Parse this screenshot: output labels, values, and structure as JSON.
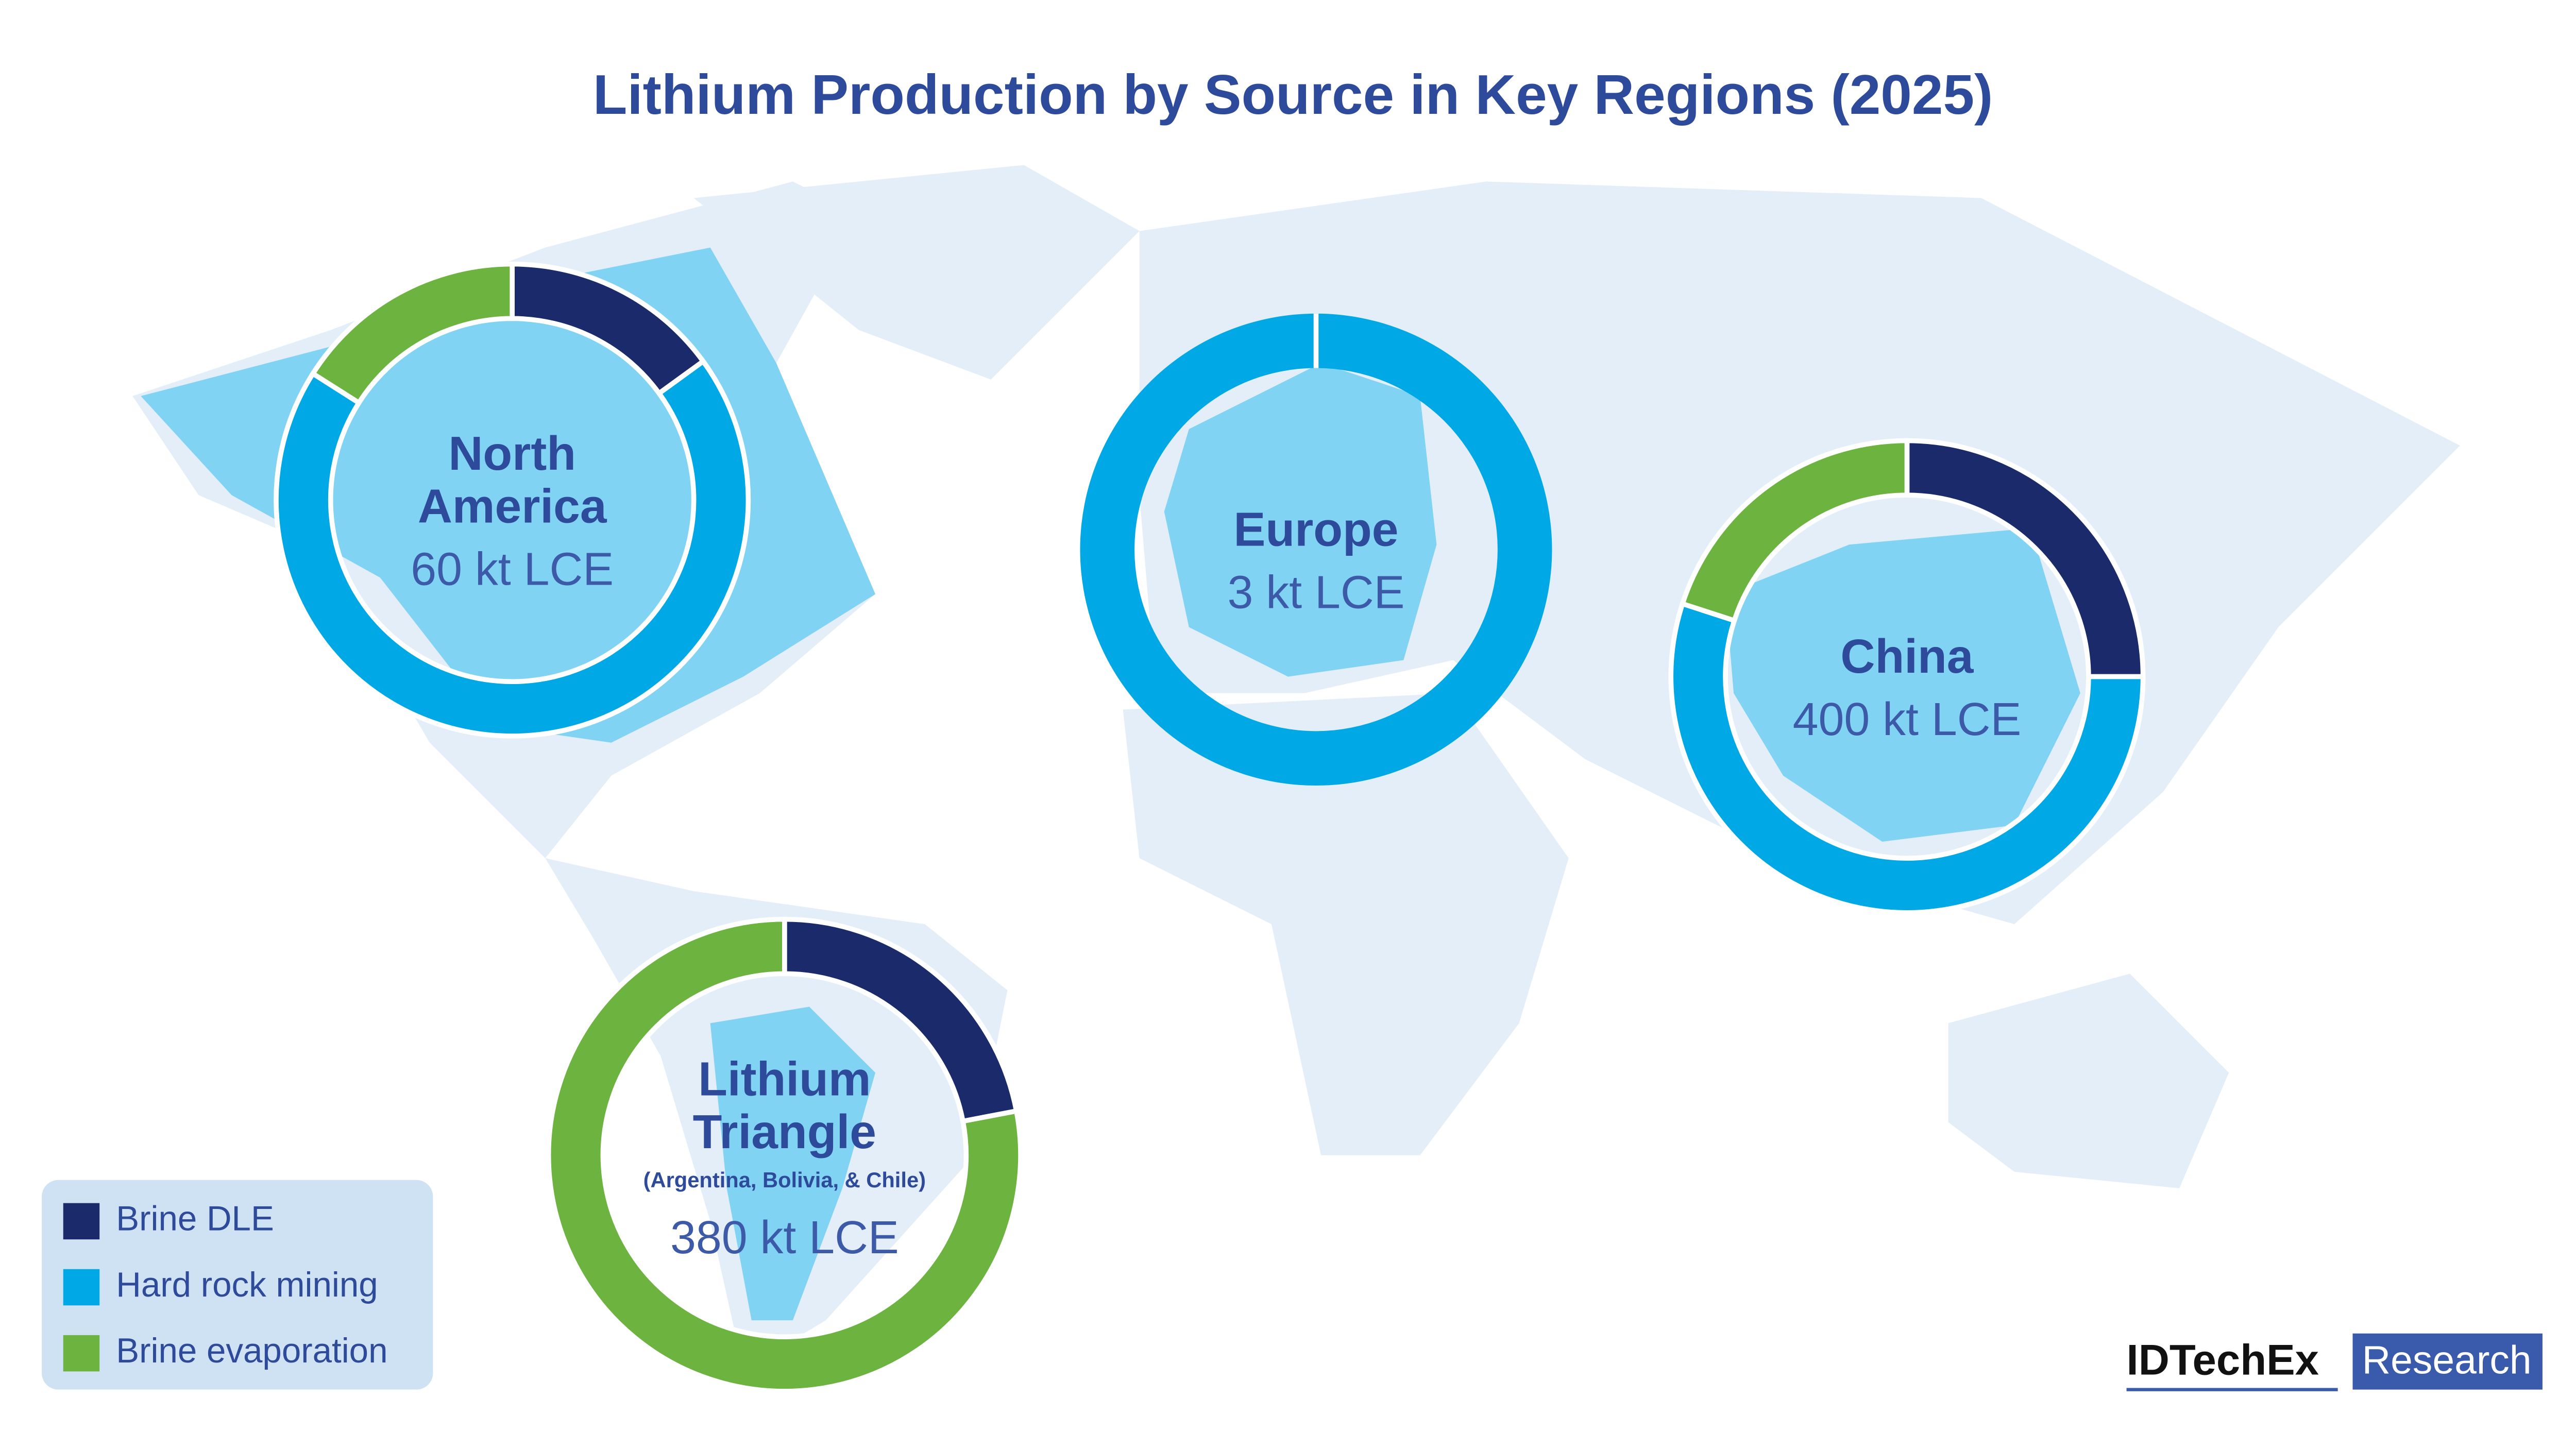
{
  "title": "Lithium Production by Source in Key Regions (2025)",
  "chart_data": [
    {
      "type": "pie",
      "title": [
        "North",
        "America"
      ],
      "subtitle": "60 kt LCE",
      "categories": [
        "Brine DLE",
        "Hard rock mining",
        "Brine evaporation"
      ],
      "colors": [
        "#1b2a6b",
        "#00a9e6",
        "#6cb33f"
      ],
      "values": [
        15,
        69,
        16
      ]
    },
    {
      "type": "pie",
      "title": [
        "Europe"
      ],
      "subtitle": "3 kt LCE",
      "categories": [
        "Brine DLE",
        "Hard rock mining",
        "Brine evaporation"
      ],
      "colors": [
        "#1b2a6b",
        "#00a9e6",
        "#6cb33f"
      ],
      "values": [
        0,
        100,
        0
      ]
    },
    {
      "type": "pie",
      "title": [
        "China"
      ],
      "subtitle": "400 kt LCE",
      "categories": [
        "Brine DLE",
        "Hard rock mining",
        "Brine evaporation"
      ],
      "colors": [
        "#1b2a6b",
        "#00a9e6",
        "#6cb33f"
      ],
      "values": [
        25,
        55,
        20
      ]
    },
    {
      "type": "pie",
      "title": [
        "Lithium",
        "Triangle"
      ],
      "note": "(Argentina, Bolivia, & Chile)",
      "subtitle": "380 kt LCE",
      "categories": [
        "Brine DLE",
        "Hard rock mining",
        "Brine evaporation"
      ],
      "colors": [
        "#1b2a6b",
        "#00a9e6",
        "#6cb33f"
      ],
      "values": [
        22,
        0,
        78
      ]
    }
  ],
  "brand": "IDTechEx",
  "brand_tag": "Research"
}
